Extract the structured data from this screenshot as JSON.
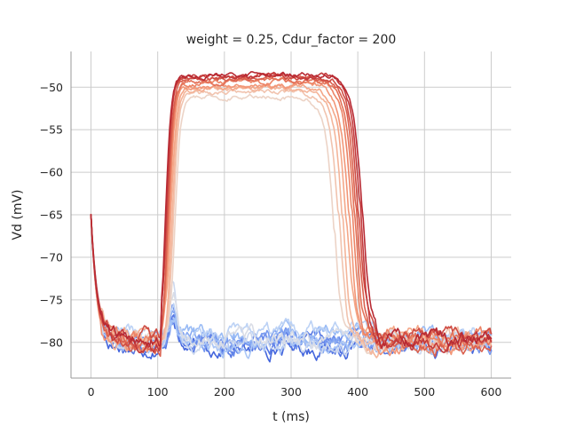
{
  "chart_data": {
    "type": "line",
    "title": "weight = 0.25, Cdur_factor = 200",
    "xlabel": "t (ms)",
    "ylabel": "Vd (mV)",
    "xlim": [
      -30,
      630
    ],
    "ylim": [
      -84.2,
      -45.8
    ],
    "xticks": [
      0,
      100,
      200,
      300,
      400,
      500,
      600
    ],
    "yticks": [
      -80,
      -75,
      -70,
      -65,
      -60,
      -55,
      -50
    ],
    "xtick_labels": [
      "0",
      "100",
      "200",
      "300",
      "400",
      "500",
      "600"
    ],
    "ytick_labels": [
      "−80",
      "−75",
      "−70",
      "−65",
      "−60",
      "−55",
      "−50"
    ],
    "grid": true,
    "legend": "none",
    "series": [
      {
        "color": "#4466dd",
        "kind": "rest",
        "peak": -76.5,
        "rest": -80.6
      },
      {
        "color": "#5577e3",
        "kind": "rest",
        "peak": -77.0,
        "rest": -80.2
      },
      {
        "color": "#6688ea",
        "kind": "rest",
        "peak": -75.8,
        "rest": -79.8
      },
      {
        "color": "#7799ef",
        "kind": "rest",
        "peak": -77.5,
        "rest": -80.0
      },
      {
        "color": "#88aaf2",
        "kind": "rest",
        "peak": -76.0,
        "rest": -79.5
      },
      {
        "color": "#99bbf5",
        "kind": "rest",
        "peak": -78.0,
        "rest": -79.2
      },
      {
        "color": "#aac6f6",
        "kind": "rest",
        "peak": -77.0,
        "rest": -80.4
      },
      {
        "color": "#bcd2f5",
        "kind": "rest",
        "peak": -75.5,
        "rest": -79.0
      },
      {
        "color": "#ccd8ee",
        "kind": "rest",
        "peak": -73.0,
        "rest": -80.1
      },
      {
        "color": "#dadde6",
        "kind": "rest",
        "peak": -74.0,
        "rest": -79.6
      },
      {
        "color": "#ecd3c6",
        "kind": "plateau",
        "rise": 126,
        "fall": 365,
        "plateau": -51.6,
        "rest": -80.0
      },
      {
        "color": "#f1c3ae",
        "kind": "plateau",
        "rise": 124,
        "fall": 372,
        "plateau": -51.0,
        "rest": -79.5
      },
      {
        "color": "#f4b59a",
        "kind": "plateau",
        "rise": 122,
        "fall": 378,
        "plateau": -50.6,
        "rest": -80.2
      },
      {
        "color": "#f4a788",
        "kind": "plateau",
        "rise": 120,
        "fall": 383,
        "plateau": -50.4,
        "rest": -79.0
      },
      {
        "color": "#f29677",
        "kind": "plateau",
        "rise": 118,
        "fall": 388,
        "plateau": -50.1,
        "rest": -80.5
      },
      {
        "color": "#ec8466",
        "kind": "plateau",
        "rise": 117,
        "fall": 392,
        "plateau": -49.8,
        "rest": -79.3
      },
      {
        "color": "#e47259",
        "kind": "plateau",
        "rise": 116,
        "fall": 395,
        "plateau": -49.6,
        "rest": -79.8
      },
      {
        "color": "#da604e",
        "kind": "plateau",
        "rise": 115,
        "fall": 398,
        "plateau": -49.4,
        "rest": -80.3
      },
      {
        "color": "#cf4c43",
        "kind": "plateau",
        "rise": 114,
        "fall": 401,
        "plateau": -49.2,
        "rest": -79.1
      },
      {
        "color": "#c3393b",
        "kind": "plateau",
        "rise": 113,
        "fall": 404,
        "plateau": -49.0,
        "rest": -80.0
      },
      {
        "color": "#b82a33",
        "kind": "plateau",
        "rise": 112,
        "fall": 407,
        "plateau": -48.9,
        "rest": -79.6
      }
    ]
  }
}
